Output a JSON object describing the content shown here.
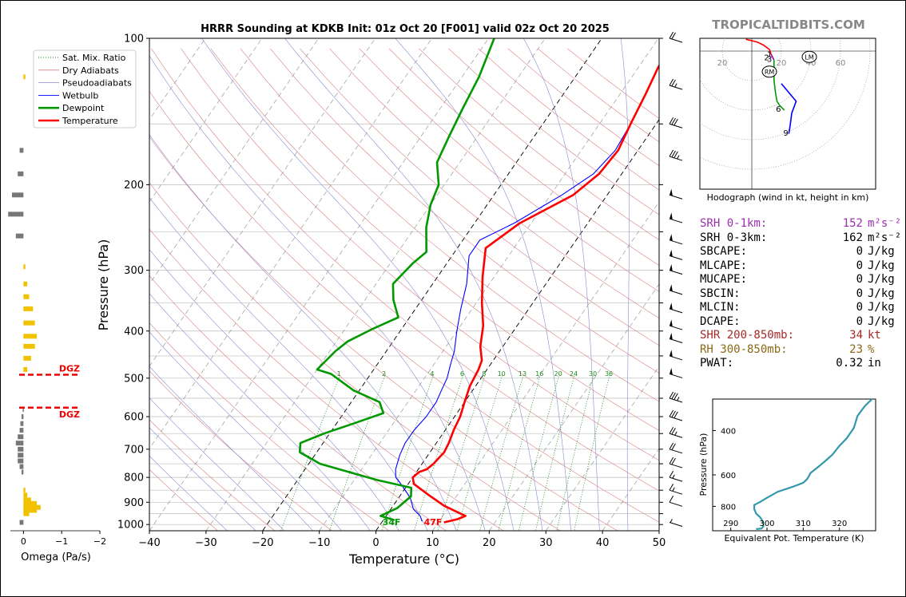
{
  "page": {
    "title": "HRRR Sounding at KDKB Init: 01z Oct 20 [F001] valid 02z Oct 20 2025",
    "watermark": "TROPICALTIDBITS.COM"
  },
  "skewt": {
    "xlabel": "Temperature (°C)",
    "ylabel": "Pressure (hPa)",
    "xlim": [
      -40,
      50
    ],
    "ylim": [
      1030,
      100
    ],
    "x_ticks": [
      "−40",
      "−30",
      "−20",
      "−10",
      "0",
      "10",
      "20",
      "30",
      "40",
      "50"
    ],
    "y_ticks": [
      "100",
      "200",
      "300",
      "400",
      "500",
      "600",
      "700",
      "800",
      "900",
      "1000"
    ],
    "mixing_ratio_labels": [
      "1",
      "2",
      "4",
      "6",
      "8",
      "10",
      "13",
      "16",
      "20",
      "24",
      "30",
      "36"
    ],
    "surface_dewpoint_label": "34F",
    "surface_temp_label": "47F",
    "colors": {
      "temperature": "#ff0000",
      "dewpoint": "#009900",
      "wetbulb": "#0000ff",
      "dry_adiabat": "#d98080",
      "pseudoadiabat": "#8a8ad0",
      "mixing_ratio": "#1d8a1d",
      "isotherm": "#777777"
    }
  },
  "legend": {
    "items": [
      {
        "label": "Sat. Mix. Ratio",
        "color": "#1d8a1d",
        "style": "dotted"
      },
      {
        "label": "Dry Adiabats",
        "color": "#d98080",
        "style": "solid"
      },
      {
        "label": "Pseudoadiabats",
        "color": "#9999cc",
        "style": "solid"
      },
      {
        "label": "Wetbulb",
        "color": "#0000ff",
        "style": "solid"
      },
      {
        "label": "Dewpoint",
        "color": "#009900",
        "style": "bold"
      },
      {
        "label": "Temperature",
        "color": "#ff0000",
        "style": "bold"
      }
    ]
  },
  "chart_data": [
    {
      "type": "line",
      "title": "HRRR Sounding at KDKB Init: 01z Oct 20 [F001] valid 02z Oct 20 2025",
      "xlabel": "Temperature (°C)",
      "ylabel": "Pressure (hPa)",
      "series": [
        {
          "name": "Temperature",
          "points": [
            [
              11,
              990
            ],
            [
              13,
              975
            ],
            [
              14,
              960
            ],
            [
              9,
              915
            ],
            [
              5,
              870
            ],
            [
              1,
              825
            ],
            [
              0,
              800
            ],
            [
              0.5,
              780
            ],
            [
              1.5,
              770
            ],
            [
              2,
              750
            ],
            [
              2.5,
              710
            ],
            [
              2.2,
              680
            ],
            [
              1.5,
              640
            ],
            [
              1,
              600
            ],
            [
              0,
              560
            ],
            [
              -1,
              520
            ],
            [
              -1.5,
              480
            ],
            [
              -2,
              460
            ],
            [
              -4,
              430
            ],
            [
              -6,
              390
            ],
            [
              -9,
              350
            ],
            [
              -12,
              310
            ],
            [
              -15,
              270
            ],
            [
              -12,
              240
            ],
            [
              -6,
              210
            ],
            [
              -4,
              190
            ],
            [
              -3.5,
              170
            ],
            [
              -4.5,
              150
            ],
            [
              -5.5,
              130
            ],
            [
              -6.5,
              115
            ],
            [
              -7,
              100
            ]
          ]
        },
        {
          "name": "Dewpoint",
          "points": [
            [
              2,
              980
            ],
            [
              -1,
              960
            ],
            [
              1,
              925
            ],
            [
              2,
              875
            ],
            [
              1,
              840
            ],
            [
              -6,
              810
            ],
            [
              -18,
              750
            ],
            [
              -23,
              710
            ],
            [
              -24,
              680
            ],
            [
              -21,
              650
            ],
            [
              -17,
              620
            ],
            [
              -13,
              590
            ],
            [
              -15,
              560
            ],
            [
              -21,
              530
            ],
            [
              -27,
              490
            ],
            [
              -30,
              480
            ],
            [
              -29,
              440
            ],
            [
              -28,
              420
            ],
            [
              -25,
              395
            ],
            [
              -22,
              375
            ],
            [
              -25,
              345
            ],
            [
              -27,
              320
            ],
            [
              -26,
              290
            ],
            [
              -25,
              275
            ],
            [
              -28,
              245
            ],
            [
              -30,
              220
            ],
            [
              -31,
              200
            ],
            [
              -34,
              180
            ],
            [
              -35,
              160
            ],
            [
              -36,
              140
            ],
            [
              -37,
              120
            ],
            [
              -39,
              100
            ]
          ]
        },
        {
          "name": "Wetbulb",
          "points": [
            [
              7,
              985
            ],
            [
              6,
              960
            ],
            [
              4,
              930
            ],
            [
              2,
              880
            ],
            [
              -1,
              830
            ],
            [
              -3,
              800
            ],
            [
              -4,
              770
            ],
            [
              -5,
              720
            ],
            [
              -5.5,
              680
            ],
            [
              -5.5,
              640
            ],
            [
              -5,
              600
            ],
            [
              -5,
              560
            ],
            [
              -5.5,
              530
            ],
            [
              -6,
              500
            ],
            [
              -7,
              470
            ],
            [
              -8,
              440
            ],
            [
              -10,
              400
            ],
            [
              -12,
              360
            ],
            [
              -14,
              320
            ],
            [
              -17,
              280
            ],
            [
              -17,
              260
            ],
            [
              -13,
              240
            ],
            [
              -8,
              210
            ],
            [
              -5,
              190
            ],
            [
              -4,
              170
            ],
            [
              -4.5,
              150
            ],
            [
              -5.5,
              130
            ],
            [
              -6.5,
              115
            ],
            [
              -7,
              100
            ]
          ]
        }
      ]
    },
    {
      "type": "bar",
      "xlabel": "Omega (Pa/s)",
      "x_ticks": [
        "0",
        "−1",
        "−2"
      ],
      "xlim": [
        0.3,
        -2
      ],
      "dgz_label_top": "DGZ",
      "dgz_label_bottom": "DGZ",
      "dgz_range_hpa": [
        492,
        575
      ],
      "bars": [
        [
          990,
          0.1
        ],
        [
          950,
          -0.15
        ],
        [
          935,
          -0.35
        ],
        [
          922,
          -0.45
        ],
        [
          905,
          -0.35
        ],
        [
          890,
          -0.2
        ],
        [
          870,
          -0.1
        ],
        [
          850,
          -0.05
        ],
        [
          780,
          0.05
        ],
        [
          760,
          0.1
        ],
        [
          740,
          0.15
        ],
        [
          720,
          0.15
        ],
        [
          700,
          0.15
        ],
        [
          680,
          0.2
        ],
        [
          660,
          0.15
        ],
        [
          640,
          0.1
        ],
        [
          620,
          0.08
        ],
        [
          600,
          0.05
        ],
        [
          580,
          0.02
        ],
        [
          480,
          -0.1
        ],
        [
          455,
          -0.2
        ],
        [
          430,
          -0.3
        ],
        [
          410,
          -0.35
        ],
        [
          385,
          -0.3
        ],
        [
          360,
          -0.25
        ],
        [
          340,
          -0.15
        ],
        [
          320,
          -0.1
        ],
        [
          295,
          -0.05
        ],
        [
          255,
          0.2
        ],
        [
          230,
          0.4
        ],
        [
          210,
          0.3
        ],
        [
          190,
          0.15
        ],
        [
          170,
          0.1
        ],
        [
          120,
          -0.05
        ]
      ]
    },
    {
      "type": "line",
      "title": "Hodograph (wind in kt, height in km)",
      "ring_labels": [
        "20",
        "20",
        "40",
        "60"
      ],
      "height_labels": [
        "1",
        "2",
        "3",
        "6",
        "9"
      ],
      "storm_motion_labels": [
        "RM",
        "LM"
      ],
      "segments": [
        {
          "name": "0-1 km",
          "color": "#ff0000",
          "points": [
            [
              -4,
              8
            ],
            [
              4,
              6
            ],
            [
              8,
              4
            ],
            [
              12,
              1
            ],
            [
              13,
              -2
            ]
          ]
        },
        {
          "name": "1-3 km",
          "color": "#aa00aa",
          "points": [
            [
              13,
              -2
            ],
            [
              14,
              -4
            ],
            [
              15,
              -6
            ]
          ]
        },
        {
          "name": "3-6 km",
          "color": "#009900",
          "points": [
            [
              15,
              -6
            ],
            [
              15,
              -10
            ],
            [
              15,
              -20
            ],
            [
              16,
              -28
            ],
            [
              17,
              -34
            ],
            [
              19,
              -37
            ],
            [
              22,
              -40
            ]
          ]
        },
        {
          "name": "6-9 km",
          "color": "#0000ff",
          "points": [
            [
              20,
              -22
            ],
            [
              30,
              -34
            ],
            [
              27,
              -42
            ],
            [
              26,
              -50
            ],
            [
              25,
              -56
            ]
          ]
        }
      ]
    },
    {
      "type": "line",
      "xlabel": "Equivalent Pot. Temperature (K)",
      "ylabel": "Pressure (hPa)",
      "x_ticks": [
        "290",
        "300",
        "310",
        "320"
      ],
      "y_ticks": [
        "400",
        "600",
        "800"
      ],
      "xlim": [
        285,
        330
      ],
      "ylim": [
        1000,
        300
      ],
      "series": [
        {
          "name": "Theta-e",
          "color": "#3399aa",
          "points": [
            [
              297,
              985
            ],
            [
              298.5,
              980
            ],
            [
              299,
              960
            ],
            [
              299,
              930
            ],
            [
              298.5,
              900
            ],
            [
              298,
              880
            ],
            [
              297,
              855
            ],
            [
              296.5,
              820
            ],
            [
              296.5,
              790
            ],
            [
              298,
              770
            ],
            [
              300,
              740
            ],
            [
              303,
              700
            ],
            [
              307,
              670
            ],
            [
              310,
              645
            ],
            [
              311,
              625
            ],
            [
              311.5,
              610
            ],
            [
              312,
              590
            ],
            [
              314,
              560
            ],
            [
              316,
              530
            ],
            [
              318,
              500
            ],
            [
              320,
              460
            ],
            [
              322,
              430
            ],
            [
              324,
              390
            ],
            [
              325,
              350
            ],
            [
              327,
              320
            ],
            [
              329,
              300
            ]
          ]
        }
      ]
    }
  ],
  "stats": [
    {
      "label": "SRH 0-1km:",
      "value": "152",
      "unit": "m²s⁻²",
      "color": "#9b2fae"
    },
    {
      "label": "SRH 0-3km:",
      "value": "162",
      "unit": "m²s⁻²",
      "color": "#000000"
    },
    {
      "label": "SBCAPE:",
      "value": "0",
      "unit": "J/kg",
      "color": "#000000"
    },
    {
      "label": "MLCAPE:",
      "value": "0",
      "unit": "J/kg",
      "color": "#000000"
    },
    {
      "label": "MUCAPE:",
      "value": "0",
      "unit": "J/kg",
      "color": "#000000"
    },
    {
      "label": "SBCIN:",
      "value": "0",
      "unit": "J/kg",
      "color": "#000000"
    },
    {
      "label": "MLCIN:",
      "value": "0",
      "unit": "J/kg",
      "color": "#000000"
    },
    {
      "label": "DCAPE:",
      "value": "0",
      "unit": "J/kg",
      "color": "#000000"
    },
    {
      "label": "SHR 200-850mb:",
      "value": "34",
      "unit": "kt",
      "color": "#a52a2a"
    },
    {
      "label": "RH 300-850mb:",
      "value": "23",
      "unit": "%",
      "color": "#8b6914"
    },
    {
      "label": "PWAT:",
      "value": "0.32",
      "unit": "in",
      "color": "#000000"
    }
  ],
  "wind_barbs": [
    [
      100,
      20
    ],
    [
      125,
      25
    ],
    [
      150,
      30
    ],
    [
      175,
      35
    ],
    [
      210,
      50
    ],
    [
      235,
      50
    ],
    [
      260,
      50
    ],
    [
      280,
      50
    ],
    [
      300,
      50
    ],
    [
      330,
      50
    ],
    [
      360,
      50
    ],
    [
      390,
      50
    ],
    [
      415,
      50
    ],
    [
      450,
      50
    ],
    [
      490,
      50
    ],
    [
      550,
      35
    ],
    [
      600,
      30
    ],
    [
      650,
      25
    ],
    [
      700,
      20
    ],
    [
      750,
      20
    ],
    [
      800,
      15
    ],
    [
      850,
      15
    ],
    [
      900,
      10
    ],
    [
      990,
      5
    ]
  ]
}
